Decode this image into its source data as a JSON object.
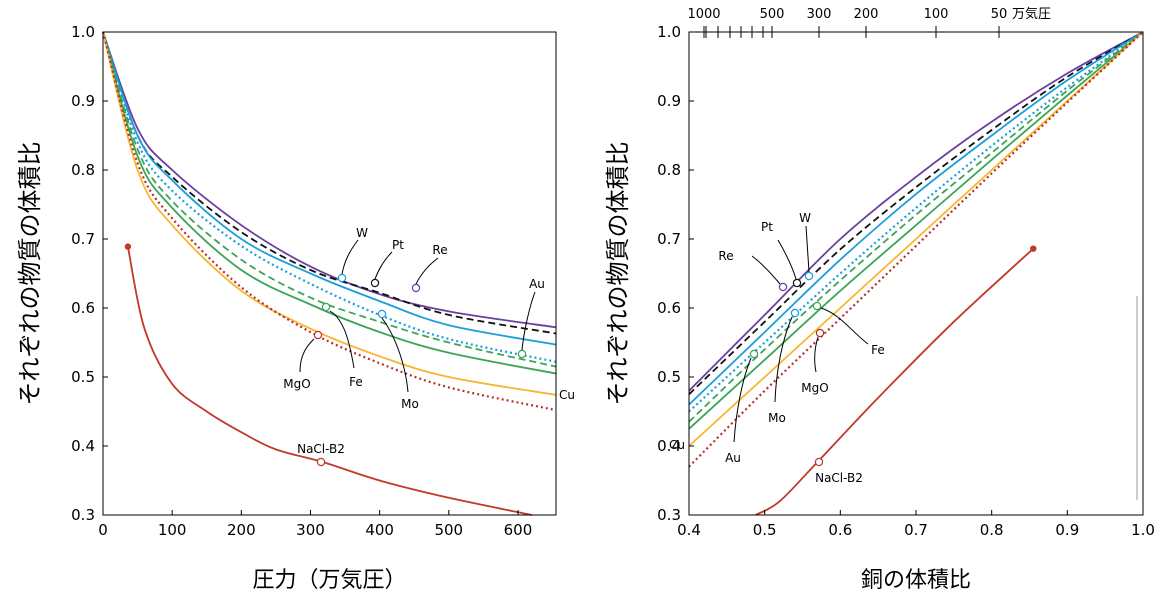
{
  "colors": {
    "W": "#6a3fa0",
    "Pt": "#111111",
    "Re": "#6a3fa0",
    "Au": "#3ba555",
    "Mo": "#42aee5",
    "Mo2": "#2aa8e0",
    "Fe": "#3ba555",
    "Cu": "#f8b52e",
    "MgO": "#b5302a",
    "NaCl": "#c0392b",
    "Mat": "#1b9edb"
  },
  "chart_data": [
    {
      "type": "line",
      "xlabel": "圧力（万気圧）",
      "ylabel": "それぞれの物質の体積比",
      "xlim": [
        0,
        655
      ],
      "ylim": [
        0.3,
        1.0
      ],
      "xticks": [
        "0",
        "100",
        "200",
        "300",
        "400",
        "500",
        "600"
      ],
      "yticks": [
        "0.3",
        "0.4",
        "0.5",
        "0.6",
        "0.7",
        "0.8",
        "0.9",
        "1.0"
      ],
      "series": [
        {
          "name": "W",
          "style": "solid",
          "color_key": "W",
          "points": [
            [
              0,
              1.0
            ],
            [
              50,
              0.86
            ],
            [
              100,
              0.8
            ],
            [
              200,
              0.72
            ],
            [
              300,
              0.66
            ],
            [
              400,
              0.62
            ],
            [
              500,
              0.595
            ],
            [
              655,
              0.572
            ]
          ]
        },
        {
          "name": "Pt",
          "style": "dashed",
          "color_key": "Pt",
          "points": [
            [
              0,
              1.0
            ],
            [
              50,
              0.85
            ],
            [
              100,
              0.79
            ],
            [
              200,
              0.71
            ],
            [
              300,
              0.655
            ],
            [
              400,
              0.622
            ],
            [
              500,
              0.59
            ],
            [
              655,
              0.563
            ]
          ]
        },
        {
          "name": "Re",
          "style": "solid",
          "color_key": "Mat",
          "points": [
            [
              0,
              1.0
            ],
            [
              50,
              0.85
            ],
            [
              100,
              0.785
            ],
            [
              200,
              0.7
            ],
            [
              300,
              0.65
            ],
            [
              400,
              0.61
            ],
            [
              500,
              0.575
            ],
            [
              655,
              0.547
            ]
          ]
        },
        {
          "name": "Mo",
          "style": "dotted",
          "color_key": "Mat",
          "points": [
            [
              0,
              1.0
            ],
            [
              50,
              0.84
            ],
            [
              100,
              0.77
            ],
            [
              200,
              0.69
            ],
            [
              300,
              0.635
            ],
            [
              400,
              0.59
            ],
            [
              500,
              0.555
            ],
            [
              655,
              0.522
            ]
          ]
        },
        {
          "name": "Au",
          "style": "dashed",
          "color_key": "Au",
          "points": [
            [
              0,
              1.0
            ],
            [
              50,
              0.83
            ],
            [
              100,
              0.755
            ],
            [
              200,
              0.67
            ],
            [
              300,
              0.615
            ],
            [
              400,
              0.58
            ],
            [
              500,
              0.55
            ],
            [
              655,
              0.515
            ]
          ]
        },
        {
          "name": "Fe",
          "style": "solid",
          "color_key": "Fe",
          "points": [
            [
              0,
              1.0
            ],
            [
              50,
              0.82
            ],
            [
              100,
              0.745
            ],
            [
              200,
              0.655
            ],
            [
              300,
              0.605
            ],
            [
              400,
              0.565
            ],
            [
              500,
              0.535
            ],
            [
              655,
              0.505
            ]
          ]
        },
        {
          "name": "Cu",
          "style": "solid",
          "color_key": "Cu",
          "points": [
            [
              0,
              1.0
            ],
            [
              50,
              0.8
            ],
            [
              100,
              0.72
            ],
            [
              200,
              0.625
            ],
            [
              300,
              0.57
            ],
            [
              400,
              0.53
            ],
            [
              500,
              0.5
            ],
            [
              655,
              0.474
            ]
          ]
        },
        {
          "name": "MgO",
          "style": "dotted",
          "color_key": "MgO",
          "points": [
            [
              0,
              1.0
            ],
            [
              50,
              0.81
            ],
            [
              100,
              0.73
            ],
            [
              200,
              0.63
            ],
            [
              300,
              0.565
            ],
            [
              400,
              0.52
            ],
            [
              500,
              0.485
            ],
            [
              655,
              0.452
            ]
          ]
        },
        {
          "name": "NaCl-B2",
          "style": "solid",
          "color_key": "NaCl",
          "points": [
            [
              36,
              0.689
            ],
            [
              60,
              0.57
            ],
            [
              100,
              0.49
            ],
            [
              150,
              0.45
            ],
            [
              200,
              0.42
            ],
            [
              250,
              0.395
            ],
            [
              317,
              0.377
            ],
            [
              400,
              0.35
            ],
            [
              500,
              0.325
            ],
            [
              620,
              0.3
            ]
          ]
        }
      ],
      "annotations": [
        {
          "text": "W"
        },
        {
          "text": "Pt"
        },
        {
          "text": "Re"
        },
        {
          "text": "Au"
        },
        {
          "text": "Mo"
        },
        {
          "text": "Fe"
        },
        {
          "text": "MgO"
        },
        {
          "text": "Cu"
        },
        {
          "text": "NaCl-B2"
        }
      ]
    },
    {
      "type": "line",
      "xlabel": "銅の体積比",
      "ylabel": "それぞれの物質の体積比",
      "xlim": [
        0.4,
        1.0
      ],
      "ylim": [
        0.3,
        1.0
      ],
      "xticks": [
        "0.4",
        "0.5",
        "0.6",
        "0.7",
        "0.8",
        "0.9",
        "1.0"
      ],
      "yticks": [
        "0.3",
        "0.4",
        "0.5",
        "0.6",
        "0.7",
        "0.8",
        "0.9",
        "1.0"
      ],
      "top_axis_label": "万気圧",
      "top_ticks": [
        "1000",
        "500",
        "300",
        "200",
        "100",
        "50"
      ],
      "series": [
        {
          "name": "W",
          "style": "solid",
          "color_key": "W",
          "points": [
            [
              0.4,
              0.48
            ],
            [
              0.5,
              0.59
            ],
            [
              0.6,
              0.7
            ],
            [
              0.7,
              0.79
            ],
            [
              0.8,
              0.87
            ],
            [
              0.9,
              0.94
            ],
            [
              1.0,
              1.0
            ]
          ]
        },
        {
          "name": "Pt",
          "style": "dashed",
          "color_key": "Pt",
          "points": [
            [
              0.4,
              0.475
            ],
            [
              0.5,
              0.58
            ],
            [
              0.6,
              0.685
            ],
            [
              0.7,
              0.775
            ],
            [
              0.8,
              0.858
            ],
            [
              0.9,
              0.935
            ],
            [
              1.0,
              1.0
            ]
          ]
        },
        {
          "name": "Re",
          "style": "solid",
          "color_key": "Mat",
          "points": [
            [
              0.4,
              0.46
            ],
            [
              0.5,
              0.565
            ],
            [
              0.6,
              0.67
            ],
            [
              0.7,
              0.765
            ],
            [
              0.8,
              0.85
            ],
            [
              0.9,
              0.93
            ],
            [
              1.0,
              1.0
            ]
          ]
        },
        {
          "name": "Mo",
          "style": "dotted",
          "color_key": "Mat",
          "points": [
            [
              0.4,
              0.45
            ],
            [
              0.5,
              0.55
            ],
            [
              0.6,
              0.65
            ],
            [
              0.7,
              0.745
            ],
            [
              0.8,
              0.835
            ],
            [
              0.9,
              0.92
            ],
            [
              1.0,
              1.0
            ]
          ]
        },
        {
          "name": "Au",
          "style": "dashed",
          "color_key": "Au",
          "points": [
            [
              0.4,
              0.435
            ],
            [
              0.5,
              0.54
            ],
            [
              0.6,
              0.64
            ],
            [
              0.7,
              0.735
            ],
            [
              0.8,
              0.825
            ],
            [
              0.9,
              0.915
            ],
            [
              1.0,
              1.0
            ]
          ]
        },
        {
          "name": "Fe",
          "style": "solid",
          "color_key": "Fe",
          "points": [
            [
              0.4,
              0.425
            ],
            [
              0.5,
              0.525
            ],
            [
              0.6,
              0.625
            ],
            [
              0.7,
              0.72
            ],
            [
              0.8,
              0.815
            ],
            [
              0.9,
              0.908
            ],
            [
              1.0,
              1.0
            ]
          ]
        },
        {
          "name": "Cu",
          "style": "solid",
          "color_key": "Cu",
          "points": [
            [
              0.4,
              0.4
            ],
            [
              0.5,
              0.5
            ],
            [
              0.6,
              0.6
            ],
            [
              0.7,
              0.7
            ],
            [
              0.8,
              0.8
            ],
            [
              0.9,
              0.9
            ],
            [
              1.0,
              1.0
            ]
          ]
        },
        {
          "name": "MgO",
          "style": "dotted",
          "color_key": "MgO",
          "points": [
            [
              0.4,
              0.37
            ],
            [
              0.5,
              0.48
            ],
            [
              0.6,
              0.585
            ],
            [
              0.7,
              0.69
            ],
            [
              0.8,
              0.795
            ],
            [
              0.9,
              0.898
            ],
            [
              1.0,
              1.0
            ]
          ]
        },
        {
          "name": "NaCl-B2",
          "style": "solid",
          "color_key": "NaCl",
          "points": [
            [
              0.488,
              0.3
            ],
            [
              0.52,
              0.32
            ],
            [
              0.57,
              0.377
            ],
            [
              0.65,
              0.47
            ],
            [
              0.75,
              0.58
            ],
            [
              0.855,
              0.686
            ]
          ]
        }
      ],
      "annotations": [
        {
          "text": "Re"
        },
        {
          "text": "Pt"
        },
        {
          "text": "W"
        },
        {
          "text": "Fe"
        },
        {
          "text": "MgO"
        },
        {
          "text": "Mo"
        },
        {
          "text": "Au"
        },
        {
          "text": "Cu"
        },
        {
          "text": "NaCl-B2"
        }
      ]
    }
  ]
}
